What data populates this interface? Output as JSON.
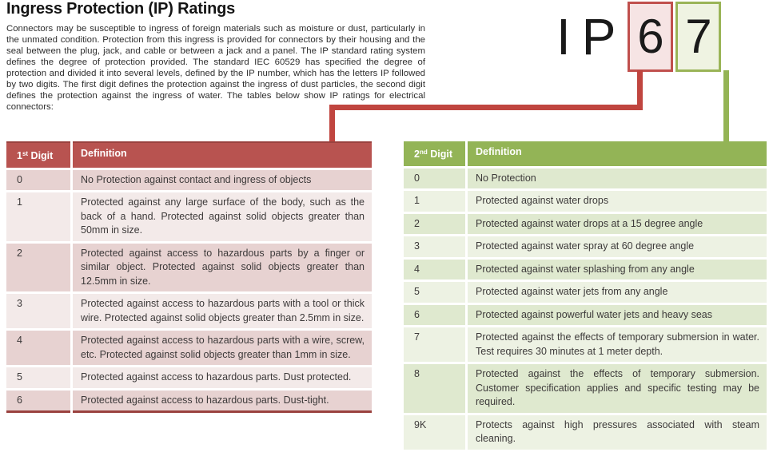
{
  "colors": {
    "first_digit_accent": "#c0504d",
    "second_digit_accent": "#94b455",
    "table1_header_bg": "#b85350",
    "table2_header_bg": "#93b456",
    "table1_row_dark": "#e7d2d1",
    "table1_row_light": "#f3eae9",
    "table2_row_dark": "#dfe9cf",
    "table2_row_light": "#edf2e3"
  },
  "header": {
    "title": "Ingress Protection (IP) Ratings",
    "intro": "Connectors may be susceptible to ingress of foreign materials such as moisture or dust, particularly in the unmated condition. Protection from this ingress is provided for connectors by their housing and the seal between the plug, jack, and cable or between a jack and a panel. The IP standard rating system defines the degree of protection provided. The standard IEC 60529 has specified the degree of protection and divided it into several levels, defined by the IP number, which has the letters IP followed by two digits. The first digit defines the protection against the ingress of dust particles, the second digit defines the protection against the ingress of water. The tables below show IP ratings for electrical connectors:"
  },
  "ip_graphic": {
    "letter_1": "I",
    "letter_2": "P",
    "first_digit": "6",
    "second_digit": "7"
  },
  "first_digit_table": {
    "header": {
      "digit_num": "1",
      "digit_ordinal": "st",
      "digit_word": " Digit",
      "definition": "Definition"
    },
    "rows": [
      {
        "digit": "0",
        "definition": "No Protection against contact and ingress of objects"
      },
      {
        "digit": "1",
        "definition": "Protected against any large surface of the body, such as the back of a hand. Protected against solid objects greater than 50mm in size."
      },
      {
        "digit": "2",
        "definition": "Protected against access to hazardous parts by a finger or similar object. Protected against solid objects greater than 12.5mm in size."
      },
      {
        "digit": "3",
        "definition": "Protected against access to hazardous parts with a tool or thick wire. Protected against solid objects greater than 2.5mm in size."
      },
      {
        "digit": "4",
        "definition": "Protected against access to hazardous parts with a wire, screw, etc. Protected against solid objects greater than 1mm in size."
      },
      {
        "digit": "5",
        "definition": "Protected against access to hazardous parts. Dust protected."
      },
      {
        "digit": "6",
        "definition": "Protected against access to hazardous parts. Dust-tight."
      }
    ]
  },
  "second_digit_table": {
    "header": {
      "digit_num": "2",
      "digit_ordinal": "nd",
      "digit_word": " Digit",
      "definition": "Definition"
    },
    "rows": [
      {
        "digit": "0",
        "definition": "No Protection"
      },
      {
        "digit": "1",
        "definition": "Protected against water drops"
      },
      {
        "digit": "2",
        "definition": "Protected against water drops at a 15 degree angle"
      },
      {
        "digit": "3",
        "definition": "Protected against water spray at 60 degree angle"
      },
      {
        "digit": "4",
        "definition": "Protected against water splashing from any angle"
      },
      {
        "digit": "5",
        "definition": "Protected against water jets from any angle"
      },
      {
        "digit": "6",
        "definition": "Protected against powerful water jets and heavy seas"
      },
      {
        "digit": "7",
        "definition": "Protected against the effects of temporary submersion in water. Test requires 30 minutes at 1 meter depth."
      },
      {
        "digit": "8",
        "definition": "Protected against the effects of temporary submersion. Customer specification applies and specific testing may be required."
      },
      {
        "digit": "9K",
        "definition": "Protects against high pressures associated with steam cleaning."
      }
    ]
  }
}
